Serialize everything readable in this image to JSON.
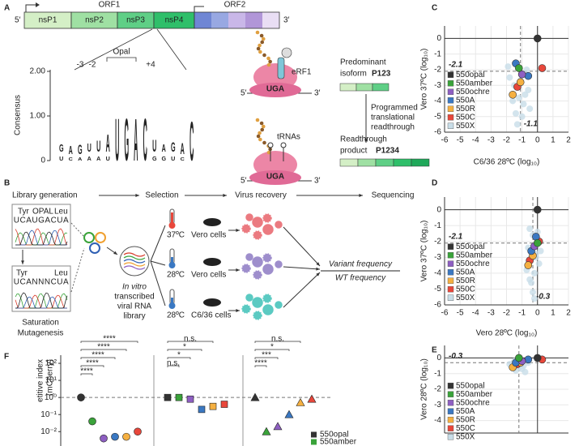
{
  "panel_labels": [
    "A",
    "B",
    "C",
    "D",
    "E",
    "F"
  ],
  "genome": {
    "orf1": "ORF1",
    "orf2": "ORF2",
    "five": "5′",
    "three": "3′",
    "nsps": [
      "nsP1",
      "nsP2",
      "nsP3",
      "nsP4"
    ]
  },
  "logo": {
    "ylabel": "Consensus",
    "yticks": [
      {
        "value": 2,
        "label": "2.00"
      },
      {
        "value": 1,
        "label": "1.00"
      },
      0
    ],
    "positions": [
      "-3",
      "-2",
      "Opal",
      "+4"
    ],
    "columns": [
      [
        {
          "l": "U",
          "h": 0.2
        },
        {
          "l": "G",
          "h": 0.35
        }
      ],
      [
        {
          "l": "C",
          "h": 0.15
        },
        {
          "l": "A",
          "h": 0.4
        }
      ],
      [
        {
          "l": "A",
          "h": 0.15
        },
        {
          "l": "G",
          "h": 0.45
        }
      ],
      [
        {
          "l": "A",
          "h": 0.2
        },
        {
          "l": "U",
          "h": 0.4
        }
      ],
      [
        {
          "l": "A",
          "h": 0.2
        },
        {
          "l": "U",
          "h": 0.5
        }
      ],
      [
        {
          "l": "U",
          "h": 0.2
        },
        {
          "l": "A",
          "h": 0.8
        }
      ],
      [
        {
          "l": "U",
          "h": 1.95
        }
      ],
      [
        {
          "l": "G",
          "h": 1.95
        }
      ],
      [
        {
          "l": "A",
          "h": 1.95
        }
      ],
      [
        {
          "l": "C",
          "h": 1.95
        }
      ],
      [
        {
          "l": "G",
          "h": 0.2
        },
        {
          "l": "U",
          "h": 0.55
        }
      ],
      [
        {
          "l": "G",
          "h": 0.2
        },
        {
          "l": "A",
          "h": 0.35
        }
      ],
      [
        {
          "l": "U",
          "h": 0.2
        },
        {
          "l": "G",
          "h": 0.45
        }
      ],
      [
        {
          "l": "C",
          "h": 0.15
        },
        {
          "l": "A",
          "h": 0.5
        }
      ],
      [
        {
          "l": "C",
          "h": 1.8
        }
      ]
    ]
  },
  "ribosome": {
    "top": {
      "factor": "eRF1",
      "codon": "UGA"
    },
    "bottom": {
      "factor": "tRNAs",
      "codon": "UGA"
    }
  },
  "products": {
    "p1": [
      "Predominant",
      "isoform"
    ],
    "p1_name": "P123",
    "readthrough": [
      "Programmed",
      "translational",
      "readthrough"
    ],
    "p2": [
      "Readthrough",
      "product"
    ],
    "p2_name": "P1234"
  },
  "steps": [
    "Library generation",
    "Selection",
    "Virus recovery",
    "Sequencing"
  ],
  "chromatogram": {
    "top": {
      "codons": [
        "Tyr",
        "OPAL",
        "Leu"
      ],
      "seq": "UCAUGACUA"
    },
    "bottom": {
      "codons": [
        "Tyr",
        "Leu"
      ],
      "seq": "UCANNNCUA"
    }
  },
  "mutagenesis": [
    "Saturation",
    "Mutagenesis"
  ],
  "library": [
    "In vitro",
    "transcribed",
    "viral RNA",
    "library"
  ],
  "conditions": [
    {
      "temp": "37ºC",
      "cells": "Vero cells"
    },
    {
      "temp": "28ºC",
      "cells": "Vero cells"
    },
    {
      "temp": "28ºC",
      "cells": "C6/36 cells"
    }
  ],
  "readout": {
    "num": "Variant frequency",
    "den": "WT frequency"
  },
  "chart_data": [
    {
      "type": "scatter",
      "ylabel": "Vero 37ºC (log₁₀)",
      "xlabel": "C6/36 28ºC (log₁₀)",
      "xlim": [
        -6,
        2
      ],
      "ylim": [
        -6,
        0.8
      ],
      "xticks": [
        -6,
        -5,
        -4,
        -3,
        -2,
        -1,
        0,
        1,
        2
      ],
      "yticks": [
        0,
        -1,
        -2,
        -3,
        -4,
        -5,
        -6
      ],
      "grid": true,
      "zero_lines": true,
      "legend": "lower left",
      "dashed": [
        {
          "axis": "y",
          "value": -2.1,
          "label": true
        },
        {
          "axis": "x",
          "value": -1.1,
          "label": true
        }
      ],
      "series": [
        {
          "name": "550opal",
          "color": "#333333",
          "x": [
            0
          ],
          "y": [
            0
          ]
        },
        {
          "name": "550amber",
          "color": "#3aa33a",
          "x": [
            -1.2
          ],
          "y": [
            -1.9
          ]
        },
        {
          "name": "550ochre",
          "color": "#8e5fc2",
          "x": [
            -1.0
          ],
          "y": [
            -2.3
          ]
        },
        {
          "name": "550A",
          "color": "#3a78c2",
          "x": [
            -1.4,
            -0.6
          ],
          "y": [
            -1.6,
            -2.4
          ]
        },
        {
          "name": "550R",
          "color": "#f5b041",
          "x": [
            -1.6,
            -1.1
          ],
          "y": [
            -3.6,
            -2.8
          ]
        },
        {
          "name": "550C",
          "color": "#e8473b",
          "x": [
            0.3,
            -1.3
          ],
          "y": [
            -1.9,
            -3.1
          ]
        },
        {
          "name": "550X",
          "color": "#c8dde8",
          "x": [
            -1.8,
            -1.5,
            -1.2,
            -0.9,
            -0.6,
            -1.4,
            -1.0,
            -0.7,
            -1.6,
            -0.8,
            -1.1,
            -1.9,
            -0.5,
            -1.3
          ],
          "y": [
            -2.5,
            -3.0,
            -3.8,
            -4.2,
            -3.3,
            -4.8,
            -5.0,
            -2.0,
            -4.0,
            -3.6,
            -2.7,
            -1.8,
            -4.5,
            -5.5
          ]
        }
      ]
    },
    {
      "type": "scatter",
      "ylabel": "Vero 37ºC (log₁₀)",
      "xlabel": "Vero 28ºC (log₁₀)",
      "xlim": [
        -6,
        2
      ],
      "ylim": [
        -6,
        0.8
      ],
      "xticks": [
        -6,
        -5,
        -4,
        -3,
        -2,
        -1,
        0,
        1,
        2
      ],
      "yticks": [
        0,
        -1,
        -2,
        -3,
        -4,
        -5,
        -6
      ],
      "grid": true,
      "zero_lines": true,
      "legend": "lower left",
      "dashed": [
        {
          "axis": "y",
          "value": -2.1,
          "label": true
        },
        {
          "axis": "x",
          "value": -0.3,
          "label": true
        }
      ],
      "series": [
        {
          "name": "550opal",
          "color": "#333333",
          "x": [
            0
          ],
          "y": [
            0
          ]
        },
        {
          "name": "550amber",
          "color": "#3aa33a",
          "x": [
            0
          ],
          "y": [
            -2.1
          ]
        },
        {
          "name": "550ochre",
          "color": "#8e5fc2",
          "x": [
            -0.2
          ],
          "y": [
            -2.3
          ]
        },
        {
          "name": "550A",
          "color": "#3a78c2",
          "x": [
            -0.4,
            -0.1
          ],
          "y": [
            -2.6,
            -1.7
          ]
        },
        {
          "name": "550R",
          "color": "#f5b041",
          "x": [
            -0.6,
            -0.3
          ],
          "y": [
            -3.5,
            -2.9
          ]
        },
        {
          "name": "550C",
          "color": "#e8473b",
          "x": [
            0.1,
            -0.5
          ],
          "y": [
            -2.0,
            -3.2
          ]
        },
        {
          "name": "550X",
          "color": "#c8dde8",
          "x": [
            -0.5,
            -0.3,
            -0.1,
            0.1,
            -0.6,
            -0.2,
            -0.4,
            0.0,
            -0.7,
            -0.3,
            -0.1,
            -0.5,
            0.2,
            -0.2
          ],
          "y": [
            -1.2,
            -1.6,
            -2.8,
            -3.4,
            -2.4,
            -4.0,
            -4.6,
            -1.4,
            -3.8,
            -5.2,
            -3.0,
            -4.4,
            -2.6,
            -5.6
          ]
        }
      ]
    },
    {
      "type": "scatter",
      "ylabel": "Vero 28ºC (log₁₀)",
      "xlim": [
        -6,
        2
      ],
      "ylim": [
        -4.8,
        0.8
      ],
      "yticks": [
        0,
        -1,
        -2,
        -3,
        -4
      ],
      "grid": true,
      "zero_lines": true,
      "legend": "lower left",
      "dashed": [
        {
          "axis": "y",
          "value": -0.3,
          "label": true
        },
        {
          "axis": "x",
          "value": -1.2,
          "label": false
        }
      ],
      "series": [
        {
          "name": "550opal",
          "color": "#333333",
          "x": [
            0
          ],
          "y": [
            0
          ]
        },
        {
          "name": "550amber",
          "color": "#3aa33a",
          "x": [
            -1.2
          ],
          "y": [
            0
          ]
        },
        {
          "name": "550ochre",
          "color": "#8e5fc2",
          "x": [
            -1.0
          ],
          "y": [
            -0.2
          ]
        },
        {
          "name": "550A",
          "color": "#3a78c2",
          "x": [
            -1.4,
            -0.6
          ],
          "y": [
            -0.3,
            -0.1
          ]
        },
        {
          "name": "550R",
          "color": "#f5b041",
          "x": [
            -1.6,
            -1.1
          ],
          "y": [
            -0.6,
            -0.3
          ]
        },
        {
          "name": "550C",
          "color": "#e8473b",
          "x": [
            0.3,
            -1.3
          ],
          "y": [
            -0.1,
            -0.4
          ]
        },
        {
          "name": "550X",
          "color": "#c8dde8",
          "x": [
            -1.8,
            -1.5,
            -1.2,
            -0.9,
            -0.6,
            -1.4,
            -1.0,
            -0.7,
            -1.6,
            -0.8
          ],
          "y": [
            -0.4,
            -0.2,
            -0.6,
            -0.5,
            -0.3,
            -0.8,
            -0.7,
            -0.2,
            -0.5,
            -0.9
          ]
        }
      ]
    },
    {
      "type": "dot",
      "ylabel": [
        "etitive index",
        "(mCherry)"
      ],
      "log_scale": true,
      "ylim": [
        0.002,
        300
      ],
      "yticks": [
        {
          "value": 100,
          "label": "10²"
        },
        {
          "value": 10,
          "label": "10¹"
        },
        {
          "value": 1,
          "label": "10⁰"
        },
        {
          "value": 0.1,
          "label": "10⁻¹"
        },
        {
          "value": 0.01,
          "label": "10⁻²"
        }
      ],
      "hline": 1,
      "markers": [
        "circle",
        "square",
        "triangle"
      ],
      "significance": [
        [
          "****",
          "****",
          "****",
          "****",
          "****"
        ],
        [
          "n.s.",
          "*",
          "*",
          "n.s."
        ],
        [
          "n.s.",
          "*",
          "***",
          "****"
        ]
      ],
      "series": [
        {
          "name": "550opal",
          "color": "#333333",
          "values": [
            1,
            1,
            1
          ]
        },
        {
          "name": "550amber",
          "color": "#3aa33a",
          "values": [
            0.04,
            1,
            0.01
          ]
        },
        {
          "name": "550ochre",
          "color": "#8e5fc2",
          "values": [
            0.004,
            0.8,
            0.02
          ]
        },
        {
          "name": "550A",
          "color": "#3a78c2",
          "values": [
            0.005,
            0.2,
            0.1
          ]
        },
        {
          "name": "550R",
          "color": "#f5b041",
          "values": [
            0.005,
            0.3,
            0.5
          ]
        },
        {
          "name": "550C",
          "color": "#e8473b",
          "values": [
            0.01,
            0.4,
            0.8
          ]
        }
      ]
    }
  ]
}
